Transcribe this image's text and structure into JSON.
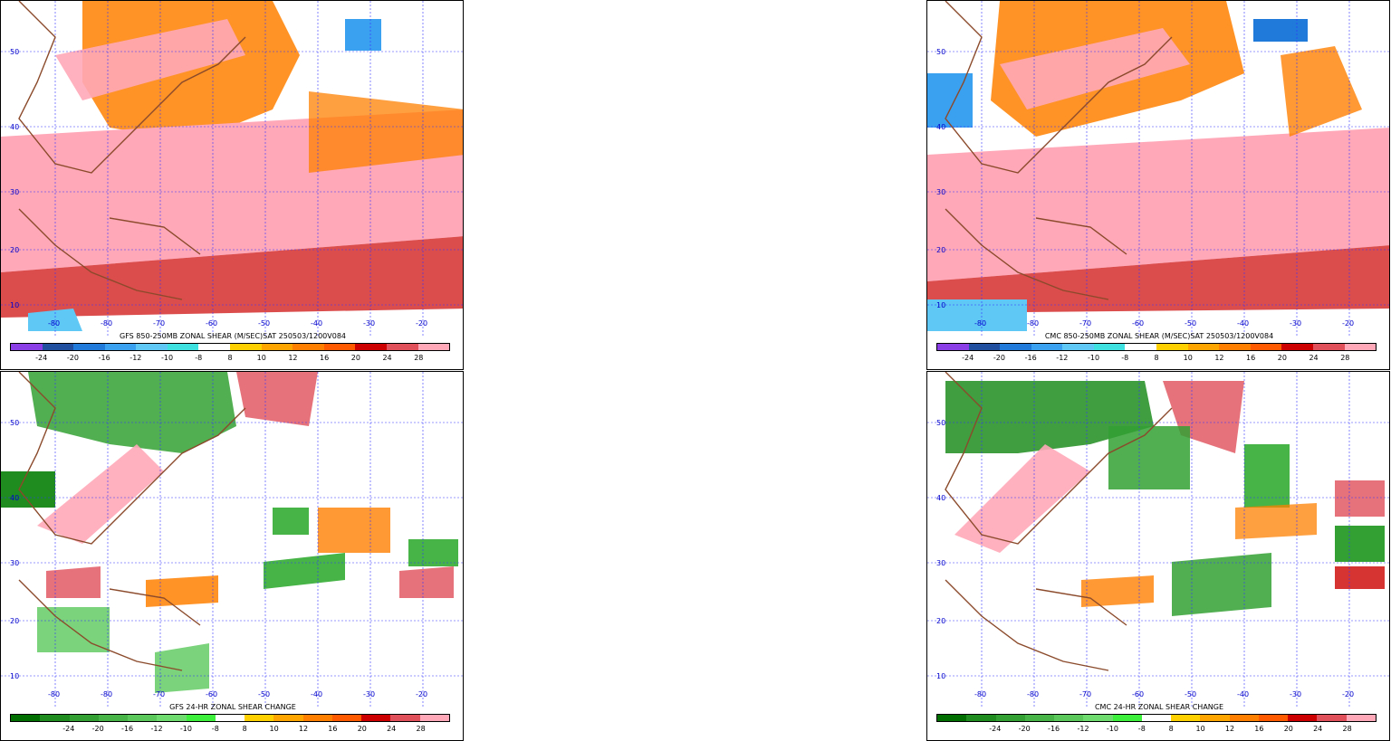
{
  "panels": [
    {
      "id": "gfs-shear",
      "caption": "GFS 850-250MB ZONAL SHEAR (M/SEC)SAT 250503/1200V084",
      "scale": "shear"
    },
    {
      "id": "cmc-shear",
      "caption": "CMC 850-250MB ZONAL SHEAR (M/SEC)SAT 250503/1200V084",
      "scale": "shear"
    },
    {
      "id": "gfs-change",
      "caption": "GFS 24-HR ZONAL SHEAR CHANGE",
      "scale": "change"
    },
    {
      "id": "cmc-change",
      "caption": "CMC 24-HR ZONAL SHEAR CHANGE",
      "scale": "change"
    }
  ],
  "lat_labels": [
    "50",
    "40",
    "30",
    "20",
    "10"
  ],
  "lon_labels": [
    "-80",
    "-80",
    "-70",
    "-60",
    "-50",
    "-40",
    "-30",
    "-20"
  ],
  "colorbar_labels": [
    "-24",
    "-20",
    "-16",
    "-12",
    "-10",
    "-8",
    "8",
    "10",
    "12",
    "16",
    "20",
    "24",
    "28"
  ],
  "colors": {
    "shear": [
      "#8a3fe6",
      "#1f4f9e",
      "#1f7ad9",
      "#3aa0f0",
      "#5fc8f5",
      "#3fe0e0",
      "#ffffff",
      "#ffd000",
      "#ffa500",
      "#ff8000",
      "#ff5a00",
      "#cc0000",
      "#e0505a",
      "#ffa8b8"
    ],
    "change": [
      "#006e00",
      "#1e8c1e",
      "#32a032",
      "#46b446",
      "#5ac85a",
      "#6edc6e",
      "#3cf03c",
      "#ffffff",
      "#ffd000",
      "#ffa500",
      "#ff8000",
      "#ff5a00",
      "#cc0000",
      "#e0505a",
      "#ffa8b8"
    ]
  }
}
